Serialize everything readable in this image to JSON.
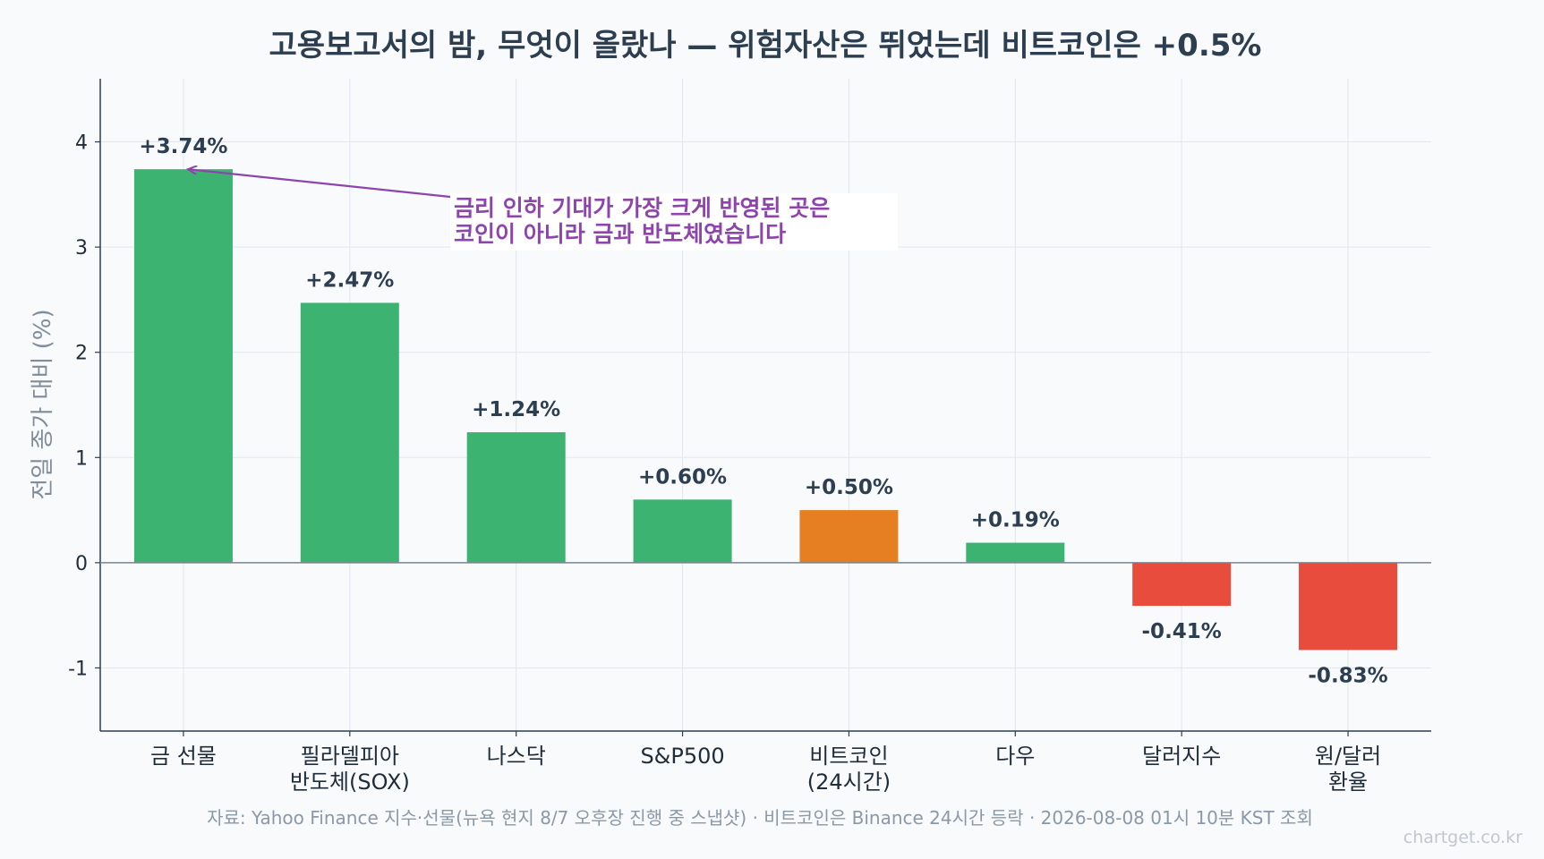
{
  "chart_data": {
    "type": "bar",
    "title": "고용보고서의 밤, 무엇이 올랐나 — 위험자산은 뛰었는데 비트코인은 +0.5%",
    "ylabel": "전일 종가 대비 (%)",
    "xlabel": "",
    "ylim": [
      -1.6,
      4.6
    ],
    "yticks": [
      -1,
      0,
      1,
      2,
      3,
      4
    ],
    "grid": true,
    "categories": [
      [
        "금 선물"
      ],
      [
        "필라델피아",
        "반도체(SOX)"
      ],
      [
        "나스닥"
      ],
      [
        "S&P500"
      ],
      [
        "비트코인",
        "(24시간)"
      ],
      [
        "다우"
      ],
      [
        "달러지수"
      ],
      [
        "원/달러",
        "환율"
      ]
    ],
    "values": [
      3.74,
      2.47,
      1.24,
      0.6,
      0.5,
      0.19,
      -0.41,
      -0.83
    ],
    "value_labels": [
      "+3.74%",
      "+2.47%",
      "+1.24%",
      "+0.60%",
      "+0.50%",
      "+0.19%",
      "-0.41%",
      "-0.83%"
    ],
    "bar_colors": [
      "#3cb371",
      "#3cb371",
      "#3cb371",
      "#3cb371",
      "#e67e22",
      "#3cb371",
      "#e74c3c",
      "#e74c3c"
    ],
    "annotation": {
      "lines": [
        "금리 인하 기대가 가장 크게 반영된 곳은",
        "코인이 아니라 금과 반도체였습니다"
      ],
      "target_category_index": 0,
      "color": "#8e44ad"
    },
    "source": "자료: Yahoo Finance 지수·선물(뉴욕 현지 8/7 오후장 진행 중 스냅샷) · 비트코인은 Binance 24시간 등락 · 2026-08-08 01시 10분 KST 조회",
    "watermark": "chartget.co.kr"
  }
}
